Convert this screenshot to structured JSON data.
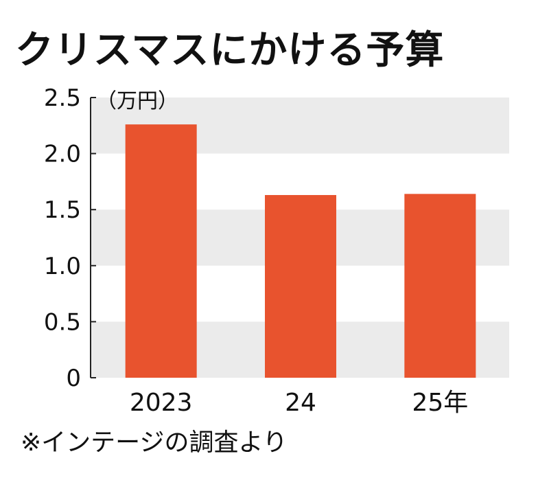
{
  "chart_data": {
    "type": "bar",
    "title": "クリスマスにかける予算",
    "ylabel": "（万円）",
    "categories": [
      "2023",
      "24",
      "25年"
    ],
    "values": [
      2.26,
      1.63,
      1.64
    ],
    "ylim": [
      0,
      2.5
    ],
    "yticks": [
      0,
      0.5,
      1.0,
      1.5,
      2.0,
      2.5
    ],
    "ytick_labels": [
      "0",
      "0.5",
      "1.0",
      "1.5",
      "2.0",
      "2.5"
    ],
    "bar_color": "#e8532e",
    "band_color": "#ebebeb",
    "grid": "alternating horizontal bands",
    "legend": "none"
  },
  "source_note": "※インテージの調査より"
}
